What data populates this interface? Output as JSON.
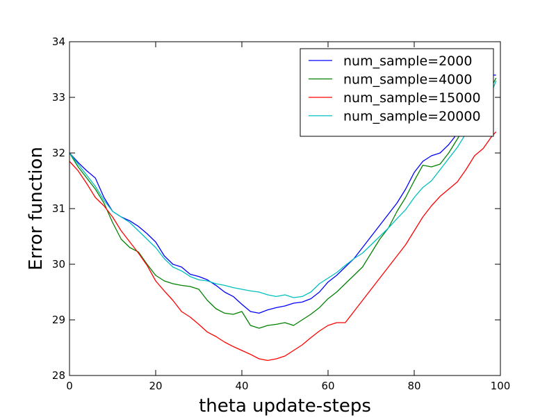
{
  "chart_data": {
    "type": "line",
    "title": "",
    "xlabel": "theta update-steps",
    "ylabel": "Error function",
    "xlim": [
      0,
      100
    ],
    "ylim": [
      28,
      34
    ],
    "xticks": [
      0,
      20,
      40,
      60,
      80,
      100
    ],
    "yticks": [
      28,
      29,
      30,
      31,
      32,
      33,
      34
    ],
    "grid": false,
    "legend_position": "top-right",
    "series": [
      {
        "name": "num_sample=2000",
        "color": "#0000ff",
        "x": [
          0,
          2,
          4,
          6,
          8,
          10,
          12,
          14,
          16,
          18,
          20,
          22,
          24,
          26,
          28,
          30,
          32,
          34,
          36,
          38,
          40,
          42,
          44,
          46,
          48,
          50,
          52,
          54,
          56,
          58,
          60,
          62,
          64,
          66,
          68,
          70,
          72,
          74,
          76,
          78,
          80,
          82,
          84,
          86,
          88,
          90,
          92,
          94,
          96,
          98,
          99
        ],
        "y": [
          32.0,
          31.83,
          31.68,
          31.55,
          31.2,
          30.95,
          30.85,
          30.78,
          30.68,
          30.55,
          30.4,
          30.15,
          30.0,
          29.95,
          29.82,
          29.78,
          29.72,
          29.62,
          29.5,
          29.42,
          29.28,
          29.15,
          29.12,
          29.18,
          29.22,
          29.25,
          29.3,
          29.32,
          29.38,
          29.5,
          29.68,
          29.8,
          29.95,
          30.1,
          30.3,
          30.5,
          30.7,
          30.9,
          31.1,
          31.35,
          31.65,
          31.85,
          31.95,
          32.0,
          32.15,
          32.35,
          32.6,
          32.85,
          33.1,
          33.4,
          33.4
        ]
      },
      {
        "name": "num_sample=4000",
        "color": "#008000",
        "x": [
          0,
          2,
          4,
          6,
          8,
          10,
          12,
          14,
          16,
          18,
          20,
          22,
          24,
          26,
          28,
          30,
          32,
          34,
          36,
          38,
          40,
          42,
          44,
          46,
          48,
          50,
          52,
          54,
          56,
          58,
          60,
          62,
          64,
          66,
          68,
          70,
          72,
          74,
          76,
          78,
          80,
          82,
          84,
          86,
          88,
          90,
          92,
          94,
          96,
          98,
          99
        ],
        "y": [
          32.0,
          31.75,
          31.55,
          31.35,
          31.1,
          30.75,
          30.45,
          30.3,
          30.22,
          30.0,
          29.8,
          29.7,
          29.65,
          29.62,
          29.6,
          29.55,
          29.35,
          29.2,
          29.12,
          29.1,
          29.15,
          28.9,
          28.85,
          28.9,
          28.92,
          28.95,
          28.9,
          29.0,
          29.1,
          29.22,
          29.38,
          29.5,
          29.65,
          29.8,
          29.95,
          30.2,
          30.45,
          30.65,
          30.95,
          31.2,
          31.5,
          31.78,
          31.75,
          31.8,
          32.0,
          32.25,
          32.5,
          32.7,
          32.95,
          33.2,
          33.35
        ]
      },
      {
        "name": "num_sample=15000",
        "color": "#ff0000",
        "x": [
          0,
          2,
          4,
          6,
          8,
          10,
          12,
          14,
          16,
          18,
          20,
          22,
          24,
          26,
          28,
          30,
          32,
          34,
          36,
          38,
          40,
          42,
          44,
          46,
          48,
          50,
          52,
          54,
          56,
          58,
          60,
          62,
          64,
          66,
          68,
          70,
          72,
          74,
          76,
          78,
          80,
          82,
          84,
          86,
          88,
          90,
          92,
          94,
          96,
          98,
          99
        ],
        "y": [
          31.85,
          31.68,
          31.45,
          31.2,
          31.05,
          30.85,
          30.6,
          30.4,
          30.2,
          29.98,
          29.7,
          29.52,
          29.35,
          29.15,
          29.05,
          28.92,
          28.78,
          28.7,
          28.6,
          28.52,
          28.45,
          28.38,
          28.3,
          28.27,
          28.3,
          28.35,
          28.45,
          28.55,
          28.68,
          28.8,
          28.9,
          28.95,
          28.95,
          29.15,
          29.35,
          29.55,
          29.75,
          29.95,
          30.15,
          30.35,
          30.6,
          30.85,
          31.05,
          31.22,
          31.35,
          31.48,
          31.7,
          31.95,
          32.08,
          32.3,
          32.38
        ]
      },
      {
        "name": "num_sample=20000",
        "color": "#00bfbf",
        "x": [
          0,
          2,
          4,
          6,
          8,
          10,
          12,
          14,
          16,
          18,
          20,
          22,
          24,
          26,
          28,
          30,
          32,
          34,
          36,
          38,
          40,
          42,
          44,
          46,
          48,
          50,
          52,
          54,
          56,
          58,
          60,
          62,
          64,
          66,
          68,
          70,
          72,
          74,
          76,
          78,
          80,
          82,
          84,
          86,
          88,
          90,
          92,
          94,
          96,
          98,
          99
        ],
        "y": [
          32.0,
          31.8,
          31.6,
          31.4,
          31.15,
          30.95,
          30.85,
          30.75,
          30.6,
          30.45,
          30.3,
          30.1,
          29.95,
          29.88,
          29.78,
          29.72,
          29.7,
          29.65,
          29.62,
          29.58,
          29.55,
          29.52,
          29.5,
          29.45,
          29.42,
          29.45,
          29.4,
          29.42,
          29.5,
          29.65,
          29.75,
          29.85,
          29.98,
          30.1,
          30.2,
          30.35,
          30.5,
          30.65,
          30.82,
          30.98,
          31.2,
          31.38,
          31.5,
          31.7,
          31.9,
          32.1,
          32.35,
          32.6,
          32.85,
          33.1,
          33.3
        ]
      }
    ]
  }
}
